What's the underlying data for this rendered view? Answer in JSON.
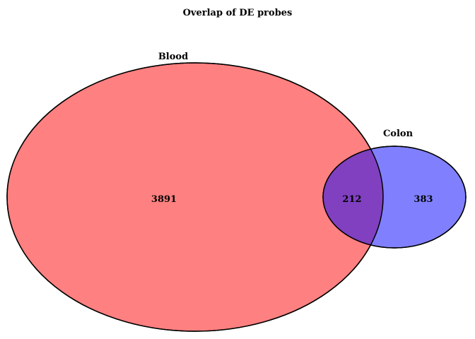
{
  "title": "Overlap of DE probes",
  "sets": [
    {
      "name": "Blood",
      "color": "#ff8080"
    },
    {
      "name": "Colon",
      "color": "#8080ff"
    }
  ],
  "regions": {
    "blood_only": "3891",
    "overlap": "212",
    "colon_only": "383"
  },
  "overlap_color": "#8040c0",
  "outline_color": "#000000"
}
